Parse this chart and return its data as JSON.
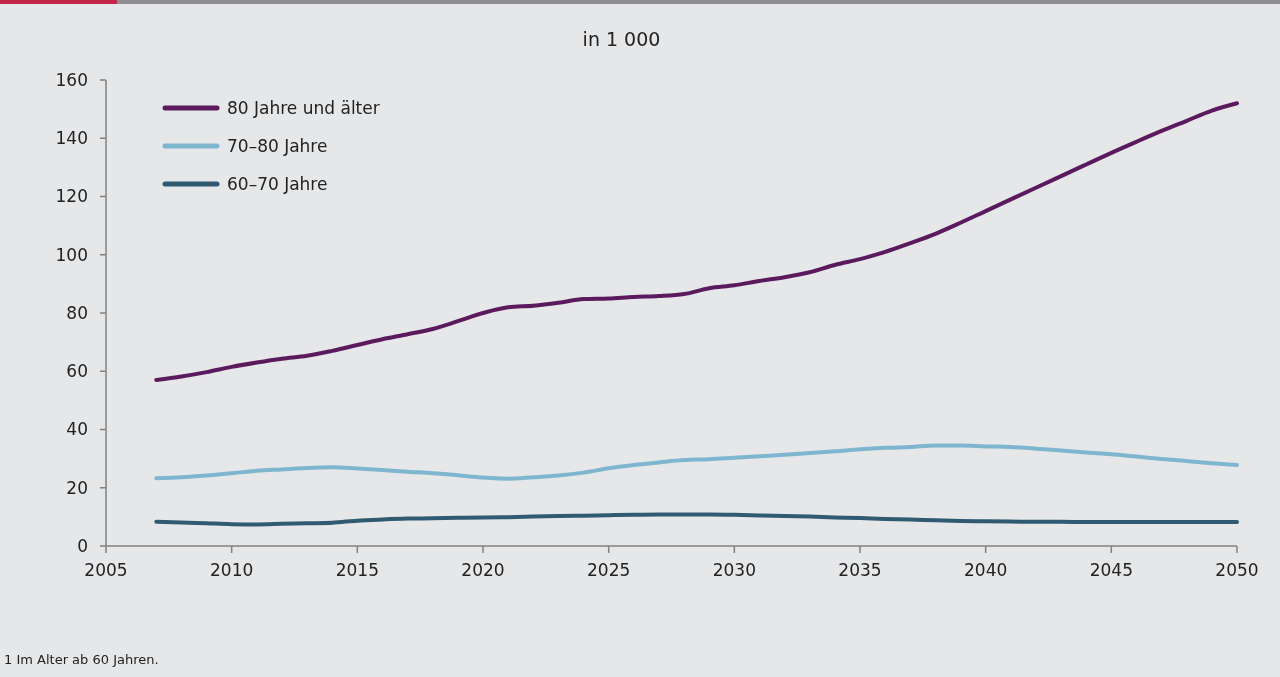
{
  "chart_data": {
    "type": "line",
    "title": "in 1 000",
    "x": [
      2007,
      2008,
      2009,
      2010,
      2011,
      2012,
      2013,
      2014,
      2015,
      2016,
      2017,
      2018,
      2019,
      2020,
      2021,
      2022,
      2023,
      2024,
      2025,
      2026,
      2027,
      2028,
      2029,
      2030,
      2031,
      2032,
      2033,
      2034,
      2035,
      2036,
      2037,
      2038,
      2039,
      2040,
      2041,
      2042,
      2043,
      2044,
      2045,
      2046,
      2047,
      2048,
      2049,
      2050
    ],
    "series": [
      {
        "name": "80 Jahre und älter",
        "color": "#5b1a5e",
        "values": [
          57,
          58.2,
          59.7,
          61.5,
          63,
          64.3,
          65.3,
          67,
          69,
          71,
          72.7,
          74.5,
          77.2,
          80,
          82,
          82.5,
          83.5,
          84.8,
          85,
          85.5,
          85.8,
          86.5,
          88.5,
          89.5,
          91,
          92.3,
          94,
          96.5,
          98.5,
          101,
          104,
          107.2,
          111,
          115,
          119,
          123,
          127,
          131,
          135,
          138.8,
          142.5,
          146,
          149.5,
          152
        ]
      },
      {
        "name": "70–80 Jahre",
        "color": "#7fb6cf",
        "values": [
          23.3,
          23.6,
          24.2,
          25,
          25.8,
          26.3,
          26.8,
          27,
          26.6,
          26.1,
          25.5,
          25,
          24.3,
          23.5,
          23.1,
          23.6,
          24.2,
          25.2,
          26.7,
          27.8,
          28.7,
          29.5,
          29.8,
          30.3,
          30.8,
          31.3,
          31.9,
          32.5,
          33.2,
          33.7,
          34,
          34.5,
          34.5,
          34.2,
          34,
          33.4,
          32.8,
          32.1,
          31.5,
          30.7,
          29.9,
          29.2,
          28.4,
          27.8
        ]
      },
      {
        "name": "60–70 Jahre",
        "color": "#2f5a72",
        "values": [
          8.3,
          8.1,
          7.8,
          7.5,
          7.4,
          7.6,
          7.8,
          8,
          8.7,
          9.1,
          9.4,
          9.5,
          9.7,
          9.8,
          9.9,
          10.1,
          10.3,
          10.4,
          10.6,
          10.7,
          10.8,
          10.8,
          10.8,
          10.7,
          10.5,
          10.3,
          10.1,
          9.8,
          9.6,
          9.3,
          9.1,
          8.8,
          8.6,
          8.5,
          8.4,
          8.3,
          8.3,
          8.2,
          8.2,
          8.2,
          8.2,
          8.2,
          8.2,
          8.2
        ]
      }
    ],
    "xlim": [
      2005,
      2050
    ],
    "xticks": [
      2005,
      2010,
      2015,
      2020,
      2025,
      2030,
      2035,
      2040,
      2045,
      2050
    ],
    "ylim": [
      0,
      160
    ],
    "yticks": [
      0,
      20,
      40,
      60,
      80,
      100,
      120,
      140,
      160
    ],
    "legend": "top left",
    "grid": false,
    "marker": "none",
    "line_style": "solid",
    "annotations": [
      "1 Im Alter ab 60 Jahren."
    ]
  }
}
